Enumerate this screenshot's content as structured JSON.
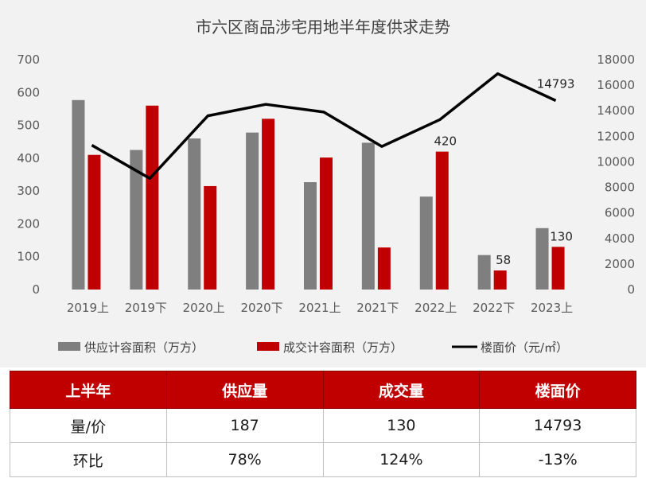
{
  "chart_data": {
    "type": "bar",
    "title": "市六区商品涉宅用地半年度供求走势",
    "categories": [
      "2019上",
      "2019下",
      "2020上",
      "2020下",
      "2021上",
      "2021下",
      "2022上",
      "2022下",
      "2023上"
    ],
    "series": [
      {
        "name": "供应计容面积（万方）",
        "type": "bar",
        "axis": "left",
        "color": "#7f7f7f",
        "values": [
          577,
          425,
          460,
          478,
          327,
          447,
          283,
          105,
          187
        ]
      },
      {
        "name": "成交计容面积（万方）",
        "type": "bar",
        "axis": "left",
        "color": "#c00000",
        "values": [
          410,
          560,
          315,
          520,
          402,
          128,
          420,
          58,
          130
        ]
      },
      {
        "name": "楼面价（元/㎡）",
        "type": "line",
        "axis": "right",
        "color": "#000000",
        "values": [
          11300,
          8700,
          13600,
          14500,
          13900,
          11200,
          13300,
          16900,
          14793
        ]
      }
    ],
    "ylim": [
      0,
      700
    ],
    "yticks": [
      "0",
      "100",
      "200",
      "300",
      "400",
      "500",
      "600",
      "700"
    ],
    "y2lim": [
      0,
      18000
    ],
    "y2ticks": [
      "0",
      "2000",
      "4000",
      "6000",
      "8000",
      "10000",
      "12000",
      "14000",
      "16000",
      "18000"
    ],
    "data_labels": [
      {
        "series": 1,
        "index": 6,
        "text": "420"
      },
      {
        "series": 1,
        "index": 7,
        "text": "58"
      },
      {
        "series": 1,
        "index": 8,
        "text": "130"
      },
      {
        "series": 2,
        "index": 8,
        "text": "14793"
      }
    ],
    "grid": false,
    "legend_position": "bottom"
  },
  "table": {
    "headers": [
      "上半年",
      "供应量",
      "成交量",
      "楼面价"
    ],
    "rows": [
      [
        "量/价",
        "187",
        "130",
        "14793"
      ],
      [
        "环比",
        "78%",
        "124%",
        "-13%"
      ]
    ]
  }
}
